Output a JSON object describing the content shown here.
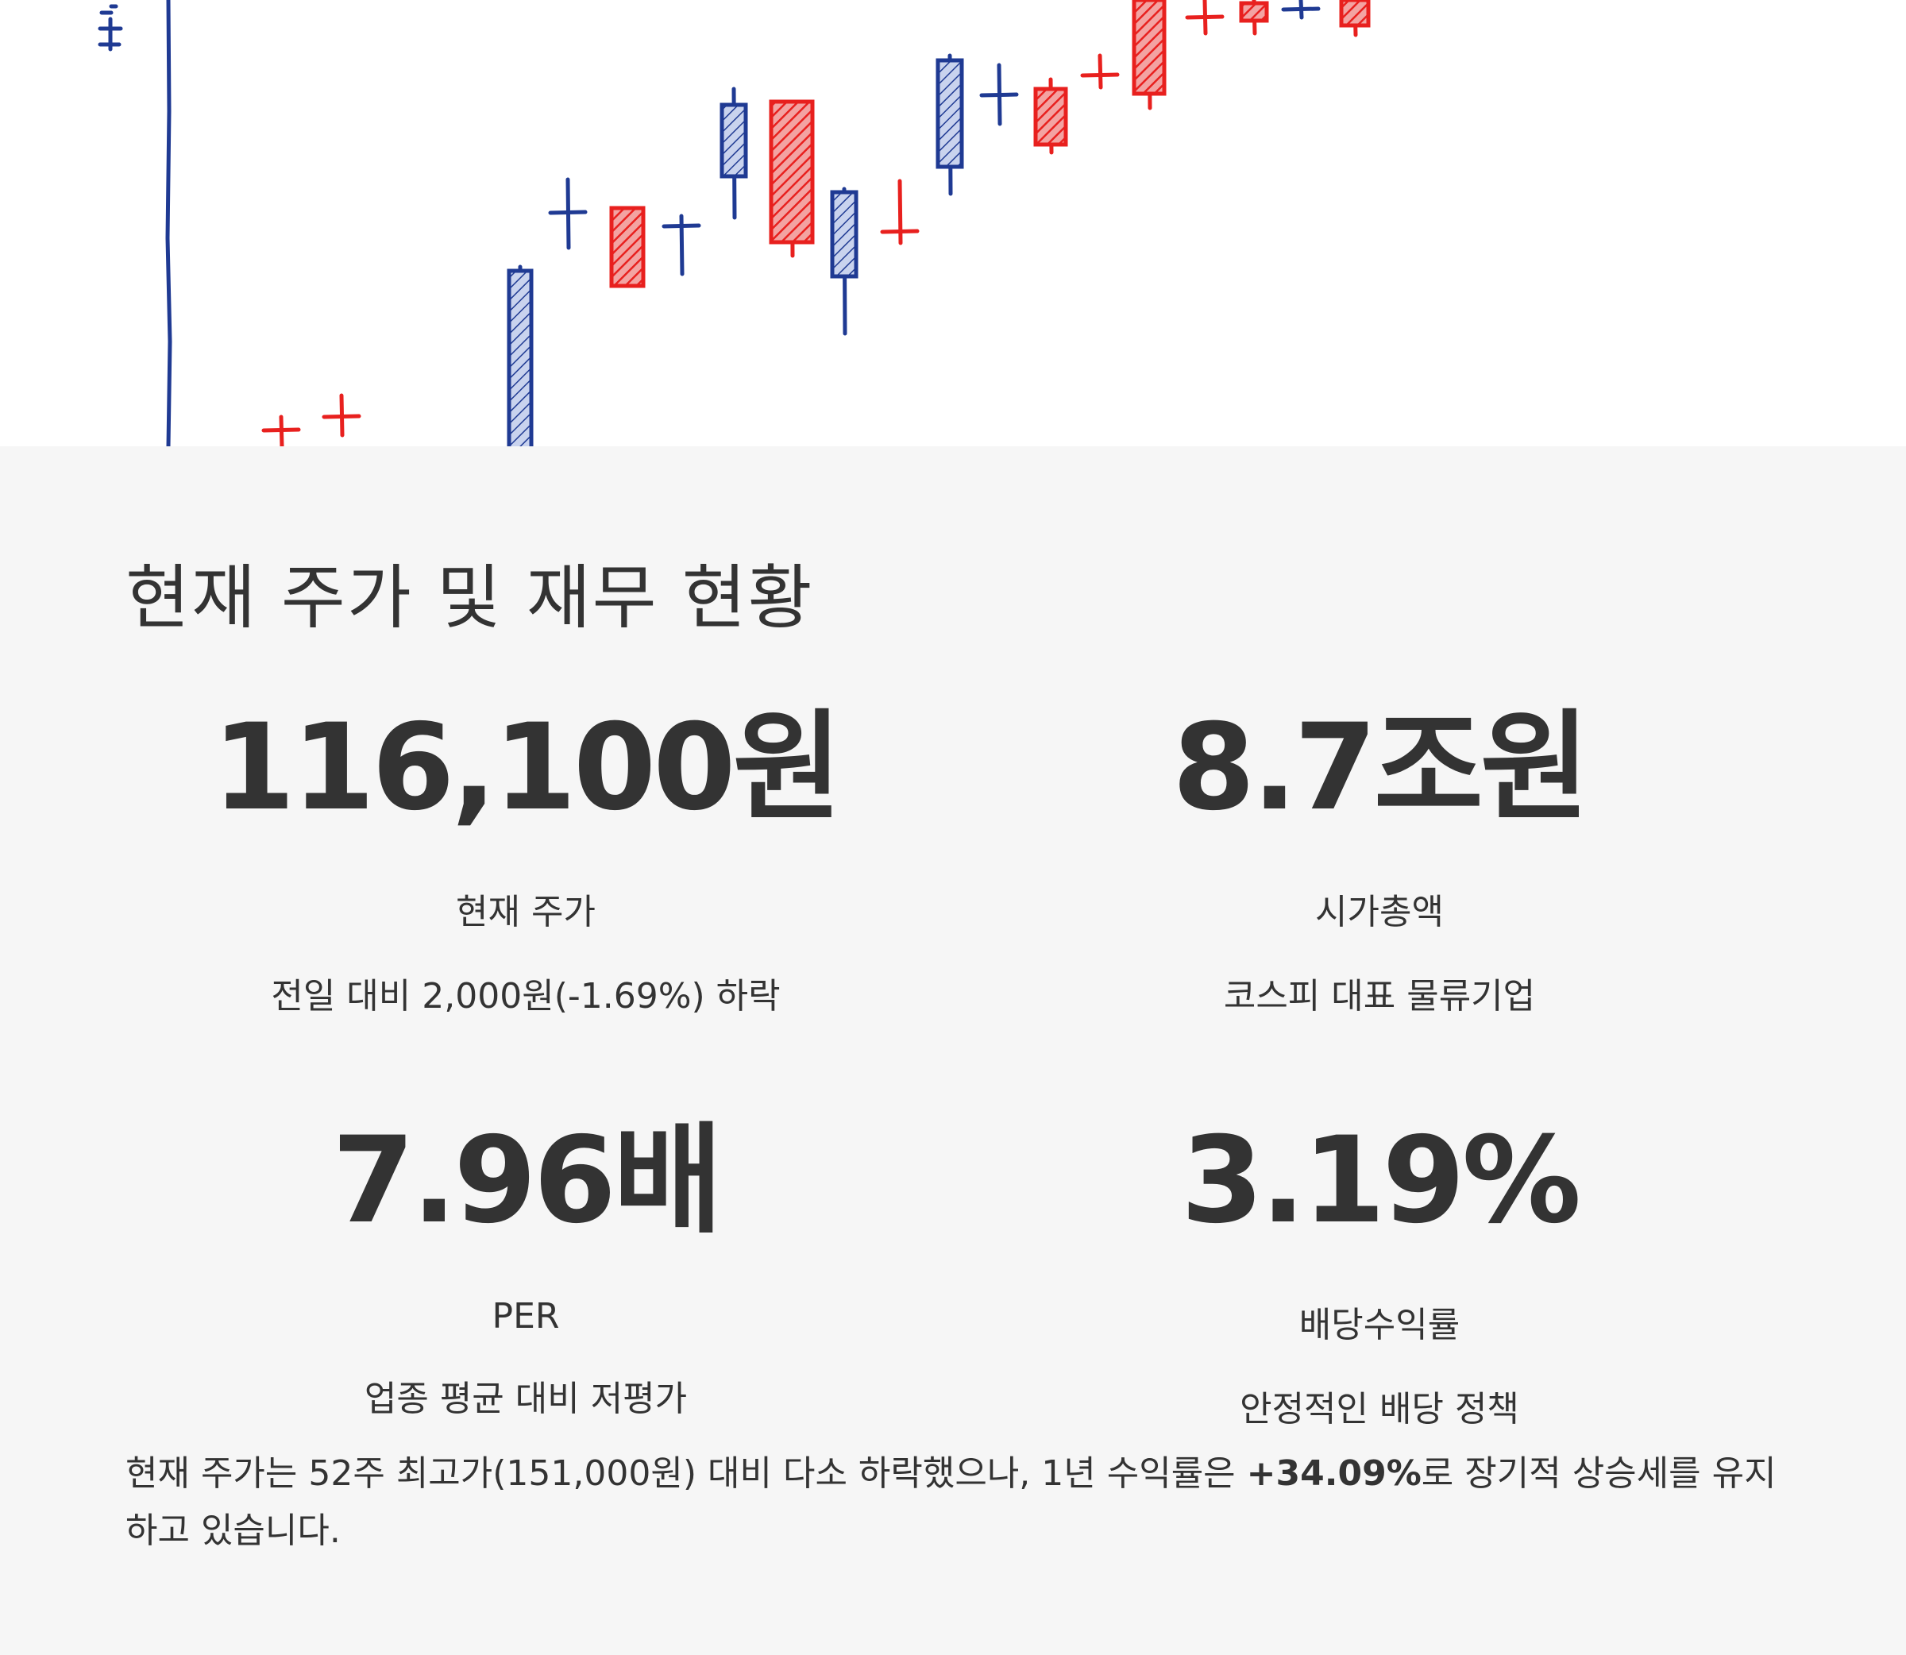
{
  "hero": {
    "colors": {
      "up": "#e8201e",
      "down": "#1f3a93",
      "axis": "#1f3a93"
    },
    "candles": [
      {
        "direction": "up",
        "type": "doji"
      },
      {
        "direction": "up",
        "type": "doji"
      },
      {
        "direction": "down",
        "type": "body"
      },
      {
        "direction": "down",
        "type": "doji"
      },
      {
        "direction": "up",
        "type": "body"
      },
      {
        "direction": "down",
        "type": "doji"
      },
      {
        "direction": "down",
        "type": "body"
      },
      {
        "direction": "up",
        "type": "body"
      },
      {
        "direction": "down",
        "type": "body"
      },
      {
        "direction": "up",
        "type": "doji"
      },
      {
        "direction": "down",
        "type": "body"
      },
      {
        "direction": "down",
        "type": "doji"
      },
      {
        "direction": "up",
        "type": "body"
      },
      {
        "direction": "up",
        "type": "doji"
      },
      {
        "direction": "up",
        "type": "body"
      },
      {
        "direction": "up",
        "type": "doji"
      },
      {
        "direction": "up",
        "type": "body"
      },
      {
        "direction": "down",
        "type": "doji"
      },
      {
        "direction": "up",
        "type": "body"
      }
    ]
  },
  "section": {
    "title": "현재 주가 및 재무 현황"
  },
  "metrics": [
    {
      "value": "116,100원",
      "label": "현재 주가",
      "sub": "전일 대비 2,000원(-1.69%) 하락"
    },
    {
      "value": "8.7조원",
      "label": "시가총액",
      "sub": "코스피 대표 물류기업"
    },
    {
      "value": "7.96배",
      "label": "PER",
      "sub": "업종 평균 대비 저평가"
    },
    {
      "value": "3.19%",
      "label": "배당수익률",
      "sub": "안정적인 배당 정책"
    }
  ],
  "summary": {
    "before": "현재 주가는 52주 최고가(151,000원) 대비 다소 하락했으나, 1년 수익률은 ",
    "highlight": "+34.09%",
    "after": "로 장기적 상승세를 유지하고 있습니다."
  }
}
